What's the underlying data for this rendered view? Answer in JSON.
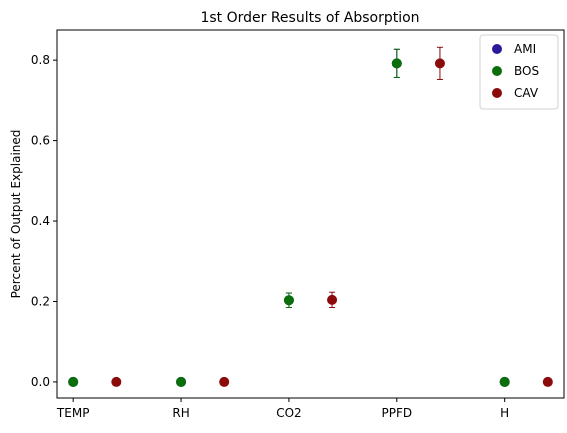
{
  "chart_data": {
    "type": "scatter",
    "title": "1st Order Results of Absorption",
    "xlabel": "",
    "ylabel": "Percent of Output Explained",
    "categories": [
      "TEMP",
      "RH",
      "CO2",
      "PPFD",
      "H"
    ],
    "ylim": [
      -0.04,
      0.875
    ],
    "yticks": [
      0.0,
      0.2,
      0.4,
      0.6,
      0.8
    ],
    "ytick_labels": [
      "0.0",
      "0.2",
      "0.4",
      "0.6",
      "0.8"
    ],
    "grid": false,
    "legend_position": "top-right",
    "series": [
      {
        "name": "AMI",
        "color": "#2a1a9a",
        "offset": -0.2,
        "values": [
          0.0,
          0.0,
          0.203,
          0.792,
          0.0
        ],
        "err_low": [
          0.0,
          0.0,
          0.018,
          0.035,
          0.0
        ],
        "err_high": [
          0.0,
          0.0,
          0.018,
          0.035,
          0.0
        ]
      },
      {
        "name": "BOS",
        "color": "#0a6e0a",
        "offset": -0.2,
        "values": [
          0.0,
          0.0,
          0.203,
          0.792,
          0.0
        ],
        "err_low": [
          0.0,
          0.0,
          0.018,
          0.035,
          0.0
        ],
        "err_high": [
          0.0,
          0.0,
          0.018,
          0.035,
          0.0
        ]
      },
      {
        "name": "CAV",
        "color": "#8b0a0a",
        "offset": 0.2,
        "values": [
          0.0,
          0.0,
          0.204,
          0.792,
          0.0
        ],
        "err_low": [
          0.0,
          0.0,
          0.019,
          0.04,
          0.0
        ],
        "err_high": [
          0.0,
          0.0,
          0.019,
          0.04,
          0.0
        ]
      }
    ]
  }
}
